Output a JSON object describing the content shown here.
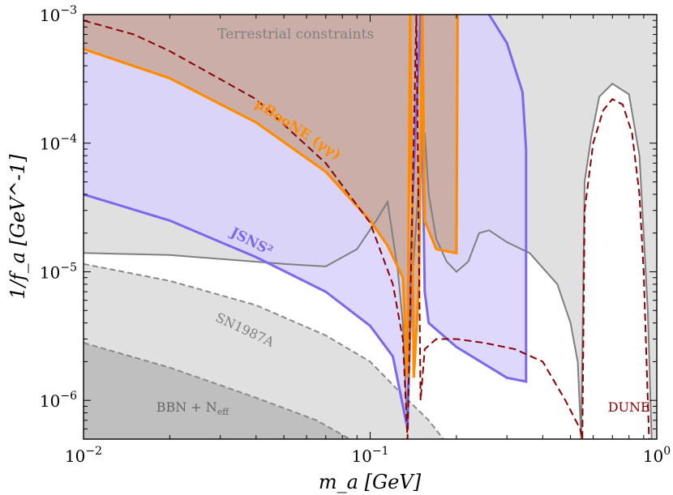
{
  "chart_data": {
    "type": "area",
    "xscale": "log",
    "yscale": "log",
    "xlim": [
      0.01,
      1
    ],
    "ylim": [
      5e-07,
      0.001
    ],
    "xlabel": "m_a [GeV]",
    "ylabel": "1/f_a [GeV^-1]",
    "x_ticks": [
      {
        "value": 0.01,
        "base": "10",
        "exp": "−2"
      },
      {
        "value": 0.1,
        "base": "10",
        "exp": "−1"
      },
      {
        "value": 1,
        "base": "10",
        "exp": "0"
      }
    ],
    "y_ticks": [
      {
        "value": 1e-06,
        "base": "10",
        "exp": "−6"
      },
      {
        "value": 1e-05,
        "base": "10",
        "exp": "−5"
      },
      {
        "value": 0.0001,
        "base": "10",
        "exp": "−4"
      },
      {
        "value": 0.001,
        "base": "10",
        "exp": "−3"
      }
    ],
    "colors": {
      "bbn": "#bfbfbf",
      "sn": "#e0e0e0",
      "terrestrial_fill": "#e0e0e0",
      "terrestrial_line": "#7f7f7f",
      "microboone": "#ff8c00",
      "microboone_fill": "#c9a79a",
      "jsns": "#7b68ee",
      "jsns_fill": "#d8d2fb",
      "dune": "#8b0000"
    },
    "series": [
      {
        "name": "BBN + N_eff",
        "kind": "shaded",
        "points": [
          [
            0.01,
            2.8e-06
          ],
          [
            0.02,
            1.8e-06
          ],
          [
            0.04,
            1.05e-06
          ],
          [
            0.065,
            7e-07
          ],
          [
            0.085,
            5e-07
          ]
        ]
      },
      {
        "name": "SN1987A",
        "kind": "shaded-dashed",
        "points": [
          [
            0.01,
            1.15e-05
          ],
          [
            0.02,
            8.5e-06
          ],
          [
            0.04,
            5.5e-06
          ],
          [
            0.07,
            3.2e-06
          ],
          [
            0.1,
            2e-06
          ],
          [
            0.13,
            1.1e-06
          ],
          [
            0.16,
            7e-07
          ],
          [
            0.18,
            5e-07
          ]
        ]
      },
      {
        "name": "Terrestrial constraints",
        "kind": "shaded-solid",
        "points": [
          [
            0.01,
            1.4e-05
          ],
          [
            0.02,
            1.35e-05
          ],
          [
            0.05,
            1.15e-05
          ],
          [
            0.07,
            1.1e-05
          ],
          [
            0.09,
            1.5e-05
          ],
          [
            0.105,
            2.5e-05
          ],
          [
            0.115,
            3.5e-05
          ],
          [
            0.125,
            1e-05
          ],
          [
            0.13,
            4e-06
          ],
          [
            0.135,
            6e-07
          ],
          [
            0.14,
            8e-06
          ],
          [
            0.148,
            5e-05
          ],
          [
            0.155,
            0.00012
          ],
          [
            0.16,
            4e-05
          ],
          [
            0.17,
            1.8e-05
          ],
          [
            0.185,
            1.2e-05
          ],
          [
            0.2,
            1e-05
          ],
          [
            0.22,
            1.2e-05
          ],
          [
            0.24,
            2e-05
          ],
          [
            0.26,
            2.1e-05
          ],
          [
            0.3,
            1.7e-05
          ],
          [
            0.36,
            1.4e-05
          ],
          [
            0.45,
            8e-06
          ],
          [
            0.5,
            4e-06
          ],
          [
            0.53,
            2e-06
          ],
          [
            0.545,
            5e-07
          ],
          [
            0.56,
            5e-05
          ],
          [
            0.59,
            0.00011
          ],
          [
            0.63,
            0.00023
          ],
          [
            0.7,
            0.00029
          ],
          [
            0.8,
            0.00024
          ],
          [
            0.87,
            8e-05
          ],
          [
            0.93,
            5e-06
          ],
          [
            0.96,
            5e-07
          ]
        ]
      },
      {
        "name": "μBooNE (γγ)",
        "kind": "line-filled",
        "points": [
          [
            0.01,
            0.00054
          ],
          [
            0.02,
            0.00032
          ],
          [
            0.04,
            0.000145
          ],
          [
            0.07,
            6e-05
          ],
          [
            0.1,
            2.5e-05
          ],
          [
            0.115,
            1.6e-05
          ],
          [
            0.13,
            9e-06
          ],
          [
            0.135,
            1.5e-06
          ],
          [
            0.138,
            0.001
          ],
          [
            0.142,
            1.5e-06
          ],
          [
            0.148,
            8e-06
          ],
          [
            0.152,
            0.001
          ],
          [
            0.155,
            2.5e-05
          ],
          [
            0.17,
            1.5e-05
          ],
          [
            0.2,
            1.4e-05
          ],
          [
            0.202,
            0.001
          ]
        ]
      },
      {
        "name": "JSNS²",
        "kind": "line-filled",
        "points": [
          [
            0.01,
            4e-05
          ],
          [
            0.02,
            2.5e-05
          ],
          [
            0.04,
            1.3e-05
          ],
          [
            0.07,
            7e-06
          ],
          [
            0.1,
            3.8e-06
          ],
          [
            0.12,
            2.2e-06
          ],
          [
            0.135,
            6e-07
          ],
          [
            0.14,
            3e-05
          ],
          [
            0.15,
            0.001
          ],
          [
            0.155,
            7e-06
          ],
          [
            0.16,
            4e-06
          ],
          [
            0.2,
            2.6e-06
          ],
          [
            0.3,
            1.5e-06
          ],
          [
            0.35,
            1.4e-06
          ],
          [
            0.35,
            9e-05
          ],
          [
            0.34,
            0.00025
          ],
          [
            0.3,
            0.0006
          ],
          [
            0.26,
            0.001
          ]
        ]
      },
      {
        "name": "DUNE",
        "kind": "dashed",
        "points": [
          [
            0.01,
            0.0009
          ],
          [
            0.015,
            0.0007
          ],
          [
            0.02,
            0.00052
          ],
          [
            0.04,
            0.00022
          ],
          [
            0.07,
            7e-05
          ],
          [
            0.1,
            2.4e-05
          ],
          [
            0.12,
            8e-06
          ],
          [
            0.13,
            3e-06
          ],
          [
            0.135,
            5e-07
          ],
          [
            0.14,
            2.5e-05
          ],
          [
            0.145,
            0.001
          ],
          [
            0.15,
            1e-06
          ],
          [
            0.155,
            2.5e-06
          ],
          [
            0.17,
            3e-06
          ],
          [
            0.2,
            3e-06
          ],
          [
            0.25,
            2.8e-06
          ],
          [
            0.32,
            2.5e-06
          ],
          [
            0.4,
            2e-06
          ],
          [
            0.48,
            1e-06
          ],
          [
            0.54,
            6e-07
          ],
          [
            0.55,
            5e-07
          ],
          [
            0.56,
            3e-05
          ],
          [
            0.6,
            0.0001
          ],
          [
            0.65,
            0.00018
          ],
          [
            0.7,
            0.00022
          ],
          [
            0.76,
            0.0002
          ],
          [
            0.82,
            0.00012
          ],
          [
            0.87,
            4e-05
          ],
          [
            0.9,
            1e-05
          ],
          [
            0.94,
            5e-07
          ]
        ]
      }
    ],
    "annotations": [
      {
        "text": "Terrestrial constraints",
        "x": 0.055,
        "y": 0.00065
      },
      {
        "text": "μBooNE (γγ)",
        "x": 0.055,
        "y": 0.00012
      },
      {
        "text": "JSNS²",
        "x": 0.038,
        "y": 1.6e-05
      },
      {
        "text": "SN1987A",
        "x": 0.036,
        "y": 3.3e-06
      },
      {
        "text": "BBN + N",
        "sub": "eff",
        "x": 0.024,
        "y": 8.2e-07
      },
      {
        "text": "DUNE",
        "x": 0.8,
        "y": 8.2e-07
      }
    ]
  }
}
